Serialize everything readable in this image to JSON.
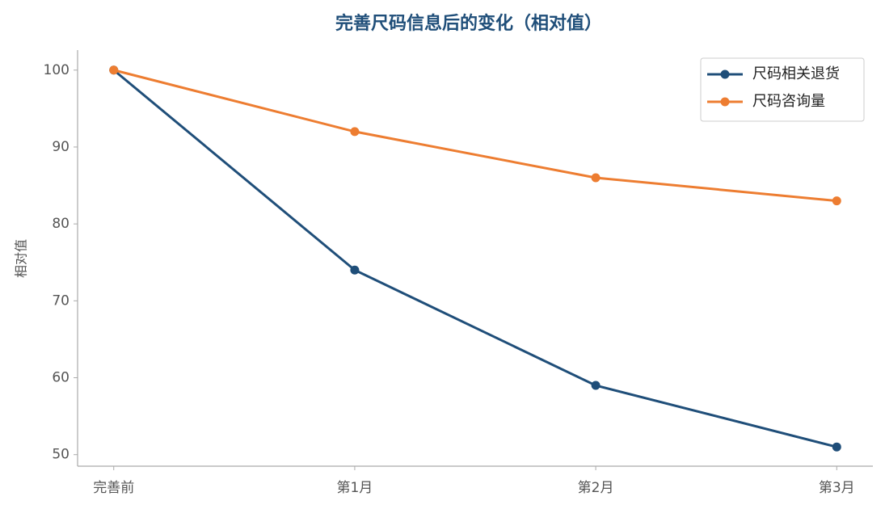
{
  "chart_data": {
    "type": "line",
    "title": "完善尺码信息后的变化（相对值）",
    "y_label": "相对值",
    "categories": [
      "完善前",
      "第1月",
      "第2月",
      "第3月"
    ],
    "series": [
      {
        "name": "尺码相关退货",
        "color": "#1f4e79",
        "values": [
          100,
          74,
          59,
          51
        ]
      },
      {
        "name": "尺码咨询量",
        "color": "#ed7d31",
        "values": [
          100,
          92,
          86,
          83
        ]
      }
    ],
    "ylim": [
      48.5,
      102.6
    ],
    "yticks": [
      50,
      60,
      70,
      80,
      90,
      100
    ],
    "grid": false,
    "legend": "upper right"
  }
}
